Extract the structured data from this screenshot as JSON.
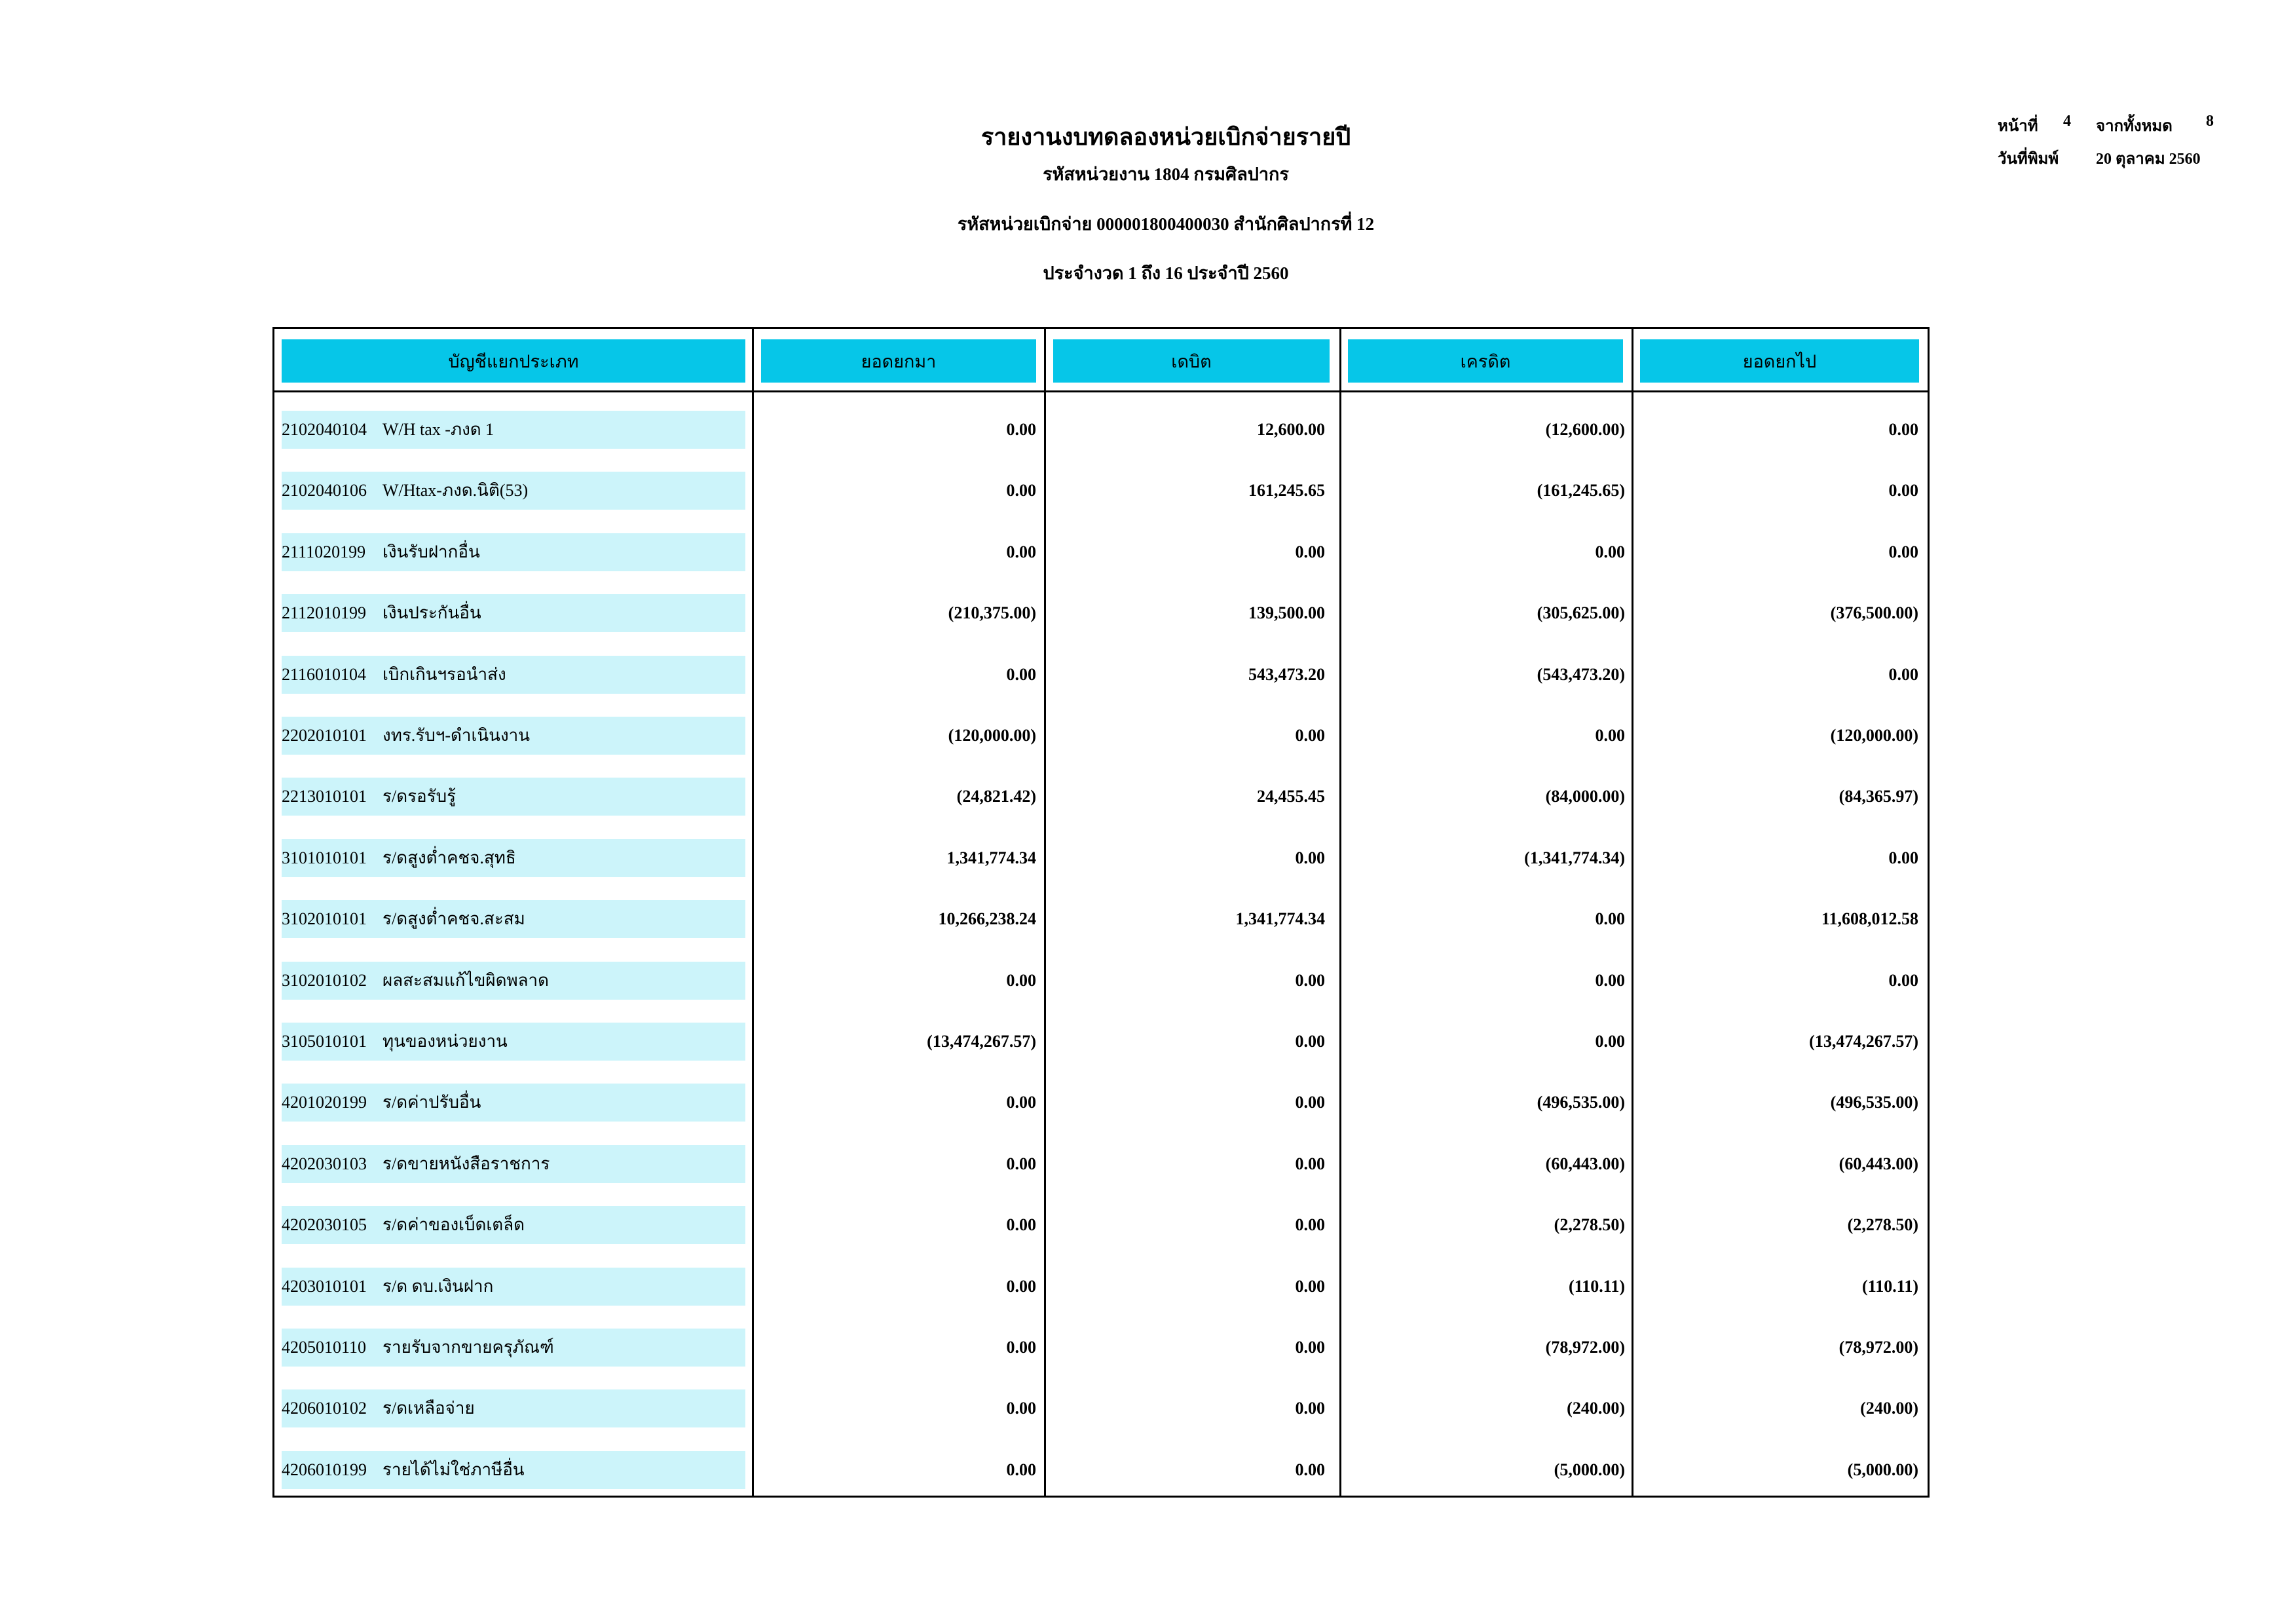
{
  "header": {
    "title": "รายงานงบทดลองหน่วยเบิกจ่ายรายปี",
    "lines": [
      "รหัสหน่วยงาน 1804 กรมศิลปากร",
      "รหัสหน่วยเบิกจ่าย 000001800400030 สำนักศิลปากรที่ 12",
      "ประจำงวด 1 ถึง 16 ประจำปี 2560"
    ],
    "page_label": "หน้าที่",
    "page": "4",
    "of_label": "จากทั้งหมด",
    "total": "8",
    "print_date_label": "วันที่พิมพ์",
    "print_date": "20 ตุลาคม 2560"
  },
  "table": {
    "columns": [
      "บัญชีแยกประเภท",
      "ยอดยกมา",
      "เดบิต",
      "เครดิต",
      "ยอดยกไป"
    ],
    "rows": [
      [
        "2102040104",
        "W/H tax -ภงด 1",
        "0.00",
        "12,600.00",
        "(12,600.00)",
        "0.00"
      ],
      [
        "2102040106",
        "W/Htax-ภงด.นิติ(53)",
        "0.00",
        "161,245.65",
        "(161,245.65)",
        "0.00"
      ],
      [
        "2111020199",
        "เงินรับฝากอื่น",
        "0.00",
        "0.00",
        "0.00",
        "0.00"
      ],
      [
        "2112010199",
        "เงินประกันอื่น",
        "(210,375.00)",
        "139,500.00",
        "(305,625.00)",
        "(376,500.00)"
      ],
      [
        "2116010104",
        "เบิกเกินฯรอนำส่ง",
        "0.00",
        "543,473.20",
        "(543,473.20)",
        "0.00"
      ],
      [
        "2202010101",
        "งทร.รับฯ-ดำเนินงาน",
        "(120,000.00)",
        "0.00",
        "0.00",
        "(120,000.00)"
      ],
      [
        "2213010101",
        "ร/ดรอรับรู้",
        "(24,821.42)",
        "24,455.45",
        "(84,000.00)",
        "(84,365.97)"
      ],
      [
        "3101010101",
        "ร/ดสูงต่ำคชจ.สุทธิ",
        "1,341,774.34",
        "0.00",
        "(1,341,774.34)",
        "0.00"
      ],
      [
        "3102010101",
        "ร/ดสูงต่ำคชจ.สะสม",
        "10,266,238.24",
        "1,341,774.34",
        "0.00",
        "11,608,012.58"
      ],
      [
        "3102010102",
        "ผลสะสมแก้ไขผิดพลาด",
        "0.00",
        "0.00",
        "0.00",
        "0.00"
      ],
      [
        "3105010101",
        "ทุนของหน่วยงาน",
        "(13,474,267.57)",
        "0.00",
        "0.00",
        "(13,474,267.57)"
      ],
      [
        "4201020199",
        "ร/ดค่าปรับอื่น",
        "0.00",
        "0.00",
        "(496,535.00)",
        "(496,535.00)"
      ],
      [
        "4202030103",
        "ร/ดขายหนังสือราชการ",
        "0.00",
        "0.00",
        "(60,443.00)",
        "(60,443.00)"
      ],
      [
        "4202030105",
        "ร/ดค่าของเบ็ดเตล็ด",
        "0.00",
        "0.00",
        "(2,278.50)",
        "(2,278.50)"
      ],
      [
        "4203010101",
        "ร/ด ดบ.เงินฝาก",
        "0.00",
        "0.00",
        "(110.11)",
        "(110.11)"
      ],
      [
        "4205010110",
        "รายรับจากขายครุภัณฑ์",
        "0.00",
        "0.00",
        "(78,972.00)",
        "(78,972.00)"
      ],
      [
        "4206010102",
        "ร/ดเหลือจ่าย",
        "0.00",
        "0.00",
        "(240.00)",
        "(240.00)"
      ],
      [
        "4206010199",
        "รายได้ไม่ใช่ภาษีอื่น",
        "0.00",
        "0.00",
        "(5,000.00)",
        "(5,000.00)"
      ]
    ]
  }
}
